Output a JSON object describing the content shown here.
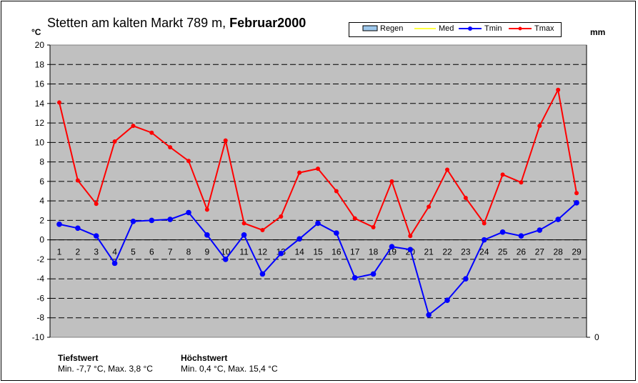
{
  "title": {
    "station": "Stetten am kalten Markt  789 m,",
    "month": "Februar",
    "year": "2000"
  },
  "units": {
    "left": "°C",
    "right": "mm"
  },
  "legend": [
    {
      "label": "Regen",
      "color": "#9ec8ec"
    },
    {
      "label": "Med",
      "color": "#ffff00"
    },
    {
      "label": "Tmin",
      "color": "#0000ff"
    },
    {
      "label": "Tmax",
      "color": "#ff0000"
    }
  ],
  "extremes": {
    "low": {
      "heading": "Tiefstwert",
      "text": "Min. -7,7 °C, Max. 3,8 °C"
    },
    "high": {
      "heading": "Höchstwert",
      "text": "Min. 0,4 °C, Max. 15,4 °C"
    }
  },
  "chart_data": {
    "type": "line",
    "x": [
      1,
      2,
      3,
      4,
      5,
      6,
      7,
      8,
      9,
      10,
      11,
      12,
      13,
      14,
      15,
      16,
      17,
      18,
      19,
      20,
      21,
      22,
      23,
      24,
      25,
      26,
      27,
      28,
      29
    ],
    "x_tick_labels": [
      "1",
      "2",
      "3",
      "4",
      "5",
      "6",
      "7",
      "8",
      "9",
      "10",
      "11",
      "12",
      "13",
      "14",
      "15",
      "16",
      "17",
      "18",
      "19",
      "20",
      "21",
      "22",
      "23",
      "24",
      "25",
      "26",
      "27",
      "28",
      "29"
    ],
    "ylim": [
      -10,
      20
    ],
    "y_ticks": [
      -10,
      -8,
      -6,
      -4,
      -2,
      0,
      2,
      4,
      6,
      8,
      10,
      12,
      14,
      16,
      18,
      20
    ],
    "y_tick_labels": [
      "-10",
      "-8",
      "-6",
      "-4",
      "-2",
      "0",
      "2",
      "4",
      "6",
      "8",
      "10",
      "12",
      "14",
      "16",
      "18",
      "20"
    ],
    "y2_tick_labels": [
      "0"
    ],
    "grid": true,
    "plot_background": "#c0c0c0",
    "series": [
      {
        "name": "Tmin",
        "color": "#0000ff",
        "values": [
          1.6,
          1.2,
          0.4,
          -2.4,
          1.9,
          2.0,
          2.1,
          2.8,
          0.5,
          -2.0,
          0.5,
          -3.5,
          -1.4,
          0.1,
          1.7,
          0.7,
          -3.9,
          -3.5,
          -0.7,
          -1.0,
          -7.7,
          -6.2,
          -4.0,
          0.0,
          0.8,
          0.4,
          1.0,
          2.1,
          3.8
        ]
      },
      {
        "name": "Tmax",
        "color": "#ff0000",
        "values": [
          14.1,
          6.1,
          3.7,
          10.1,
          11.7,
          11.0,
          9.5,
          8.1,
          3.1,
          10.2,
          1.7,
          1.0,
          2.4,
          6.9,
          7.3,
          5.0,
          2.2,
          1.3,
          6.0,
          0.4,
          3.4,
          7.2,
          4.3,
          1.7,
          6.7,
          5.9,
          11.7,
          15.4,
          4.8
        ]
      }
    ]
  }
}
